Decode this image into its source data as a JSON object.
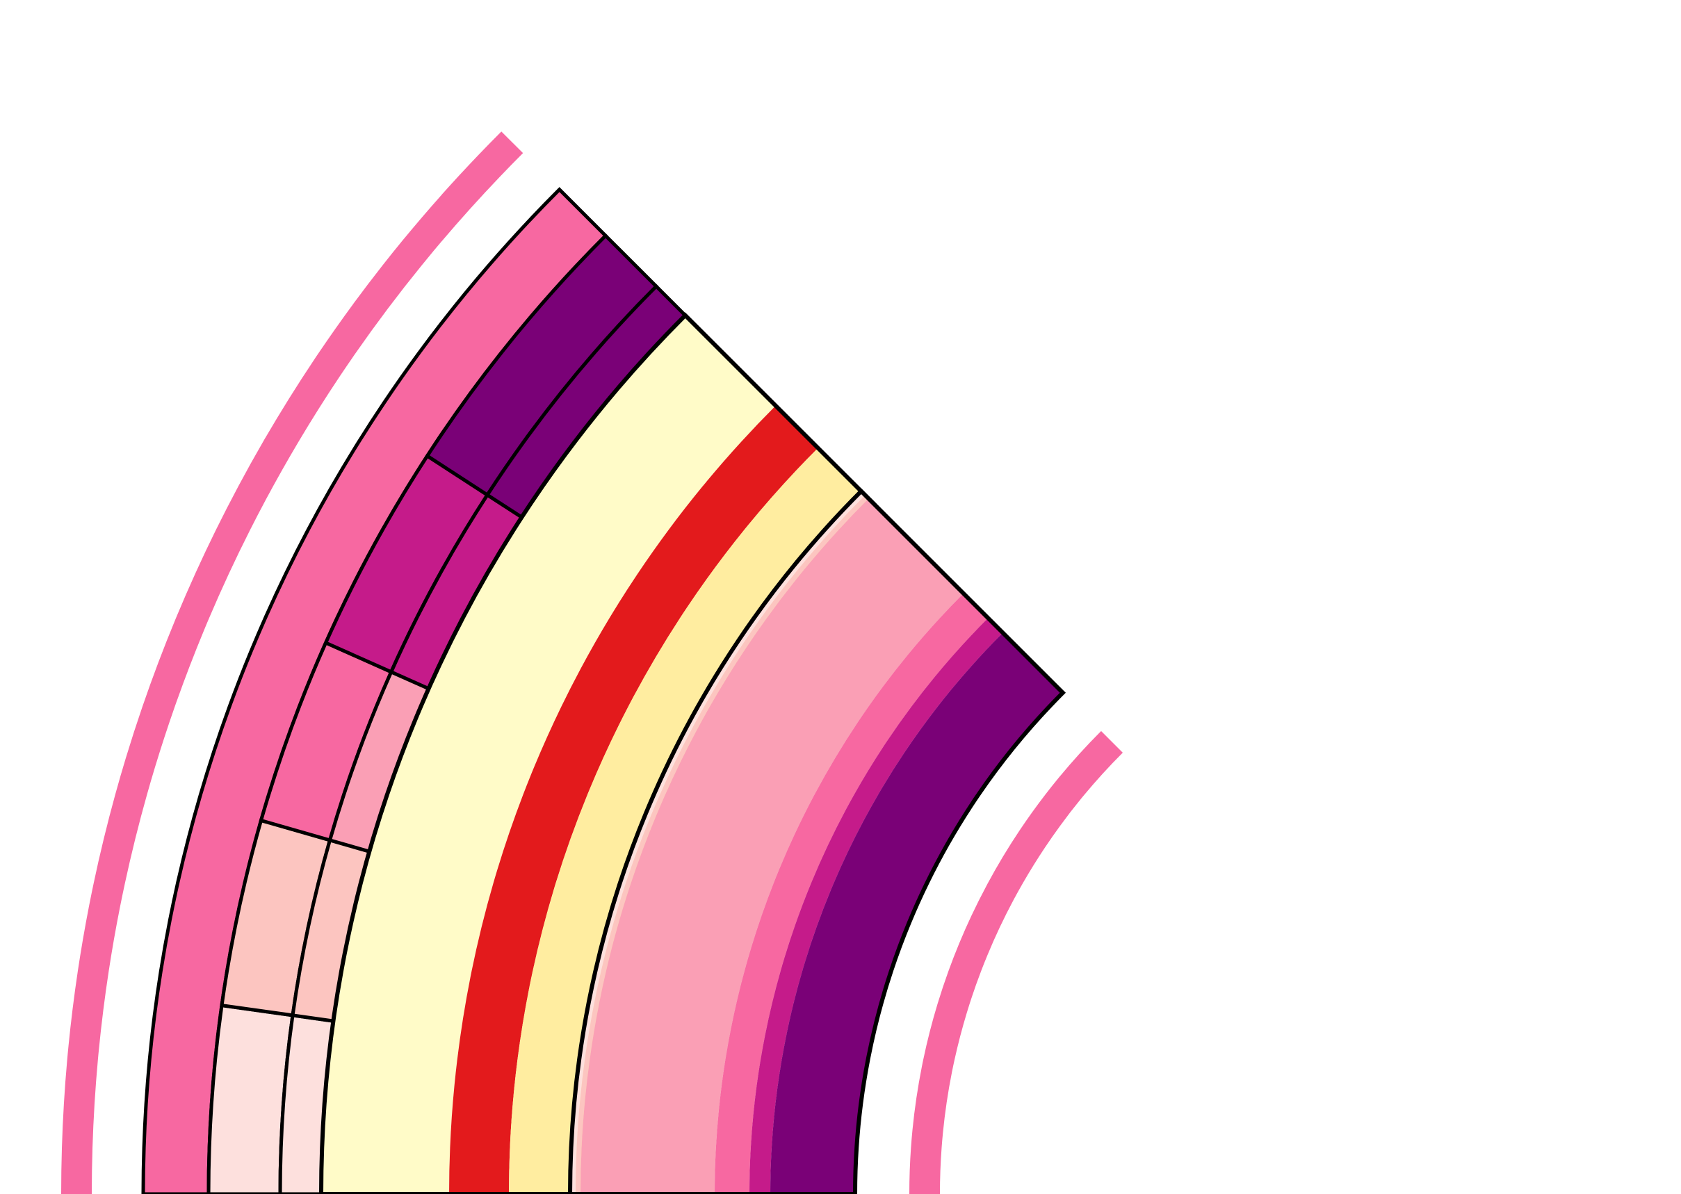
{
  "palette": {
    "pink": "#f768a1",
    "dark_purple": "#7a0177",
    "magenta": "#c51b8a",
    "light_pink": "#fa9fb5",
    "pale_pink": "#fcc5c0",
    "blush": "#fde0dd",
    "pale_yellow": "#fffbc8",
    "red": "#e31a1c",
    "light_yellow": "#ffeda0",
    "stroke": "#000000"
  },
  "figure": {
    "kind": "concentric quarter-ring segments",
    "outline_color": "#000000",
    "groups": [
      {
        "id": "outer-thin-arc",
        "fill": "pink",
        "outlined": false
      },
      {
        "id": "segmented-band",
        "outer_ring_fill": "pink",
        "grid_columns": 2,
        "grid_rows_fill_from_center_outward": [
          "blush",
          "pale_pink",
          "pink",
          "magenta",
          "dark_purple"
        ],
        "inner_column_overrides": {
          "row_2": "light_pink"
        }
      },
      {
        "id": "striped-band",
        "stripes_outer_to_inner": [
          "pale_yellow",
          "red",
          "light_yellow"
        ]
      },
      {
        "id": "gradient-band",
        "stripes_outer_to_inner": [
          "blush",
          "pale_pink",
          "light_pink",
          "pink",
          "magenta",
          "dark_purple"
        ]
      },
      {
        "id": "inner-thin-arc",
        "fill": "pink",
        "outlined": false
      }
    ]
  }
}
